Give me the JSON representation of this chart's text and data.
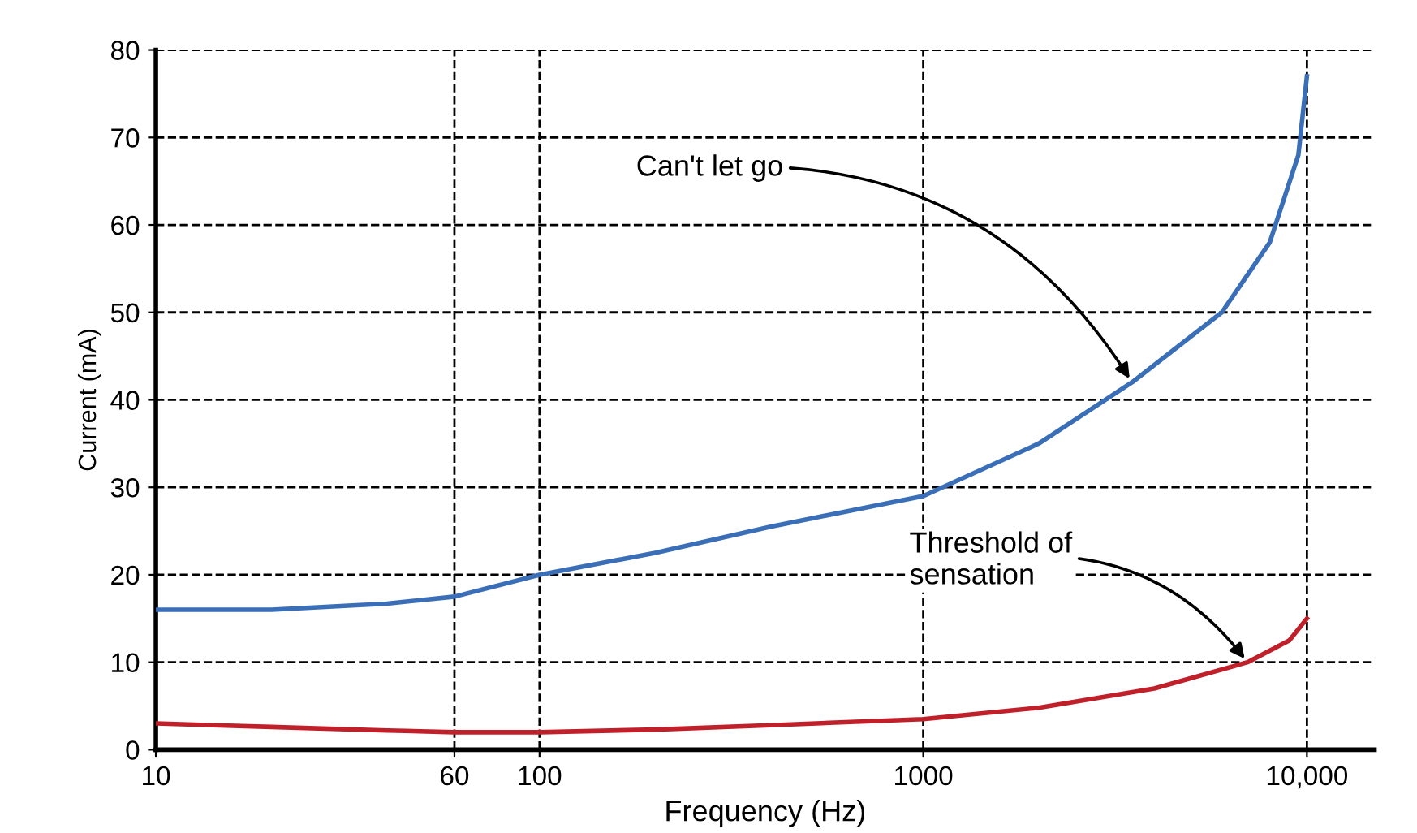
{
  "chart_data": {
    "type": "line",
    "xlabel": "Frequency (Hz)",
    "ylabel": "Current (mA)",
    "log": "x",
    "xlim": [
      10,
      15000
    ],
    "xticks": [
      10,
      60,
      100,
      1000,
      {
        "value": 10000,
        "label": "10,000"
      }
    ],
    "ylim": [
      0,
      80
    ],
    "yticks": [
      0,
      10,
      20,
      30,
      40,
      50,
      60,
      70,
      80
    ],
    "grid": true,
    "line_style": "solid",
    "marker": "none",
    "series": [
      {
        "color": "#3a6fb8",
        "x": [
          10,
          20,
          40,
          60,
          100,
          200,
          400,
          1000,
          2000,
          3500,
          6000,
          8000,
          9500,
          10000
        ],
        "values": [
          16,
          16,
          16.7,
          17.5,
          20,
          22.5,
          25.5,
          29,
          35,
          42,
          50,
          58,
          68,
          77
        ]
      },
      {
        "color": "#c0202a",
        "x": [
          10,
          20,
          40,
          60,
          100,
          200,
          400,
          1000,
          2000,
          4000,
          7000,
          9000,
          10000
        ],
        "values": [
          3,
          2.6,
          2.2,
          2,
          2,
          2.3,
          2.8,
          3.5,
          4.8,
          7,
          10,
          12.5,
          15
        ]
      }
    ],
    "annotations": [
      {
        "text": "Can't let go",
        "x": 3500,
        "y": 42
      },
      {
        "text": "Threshold of\nsensation",
        "x": 7000,
        "y": 10
      }
    ]
  }
}
